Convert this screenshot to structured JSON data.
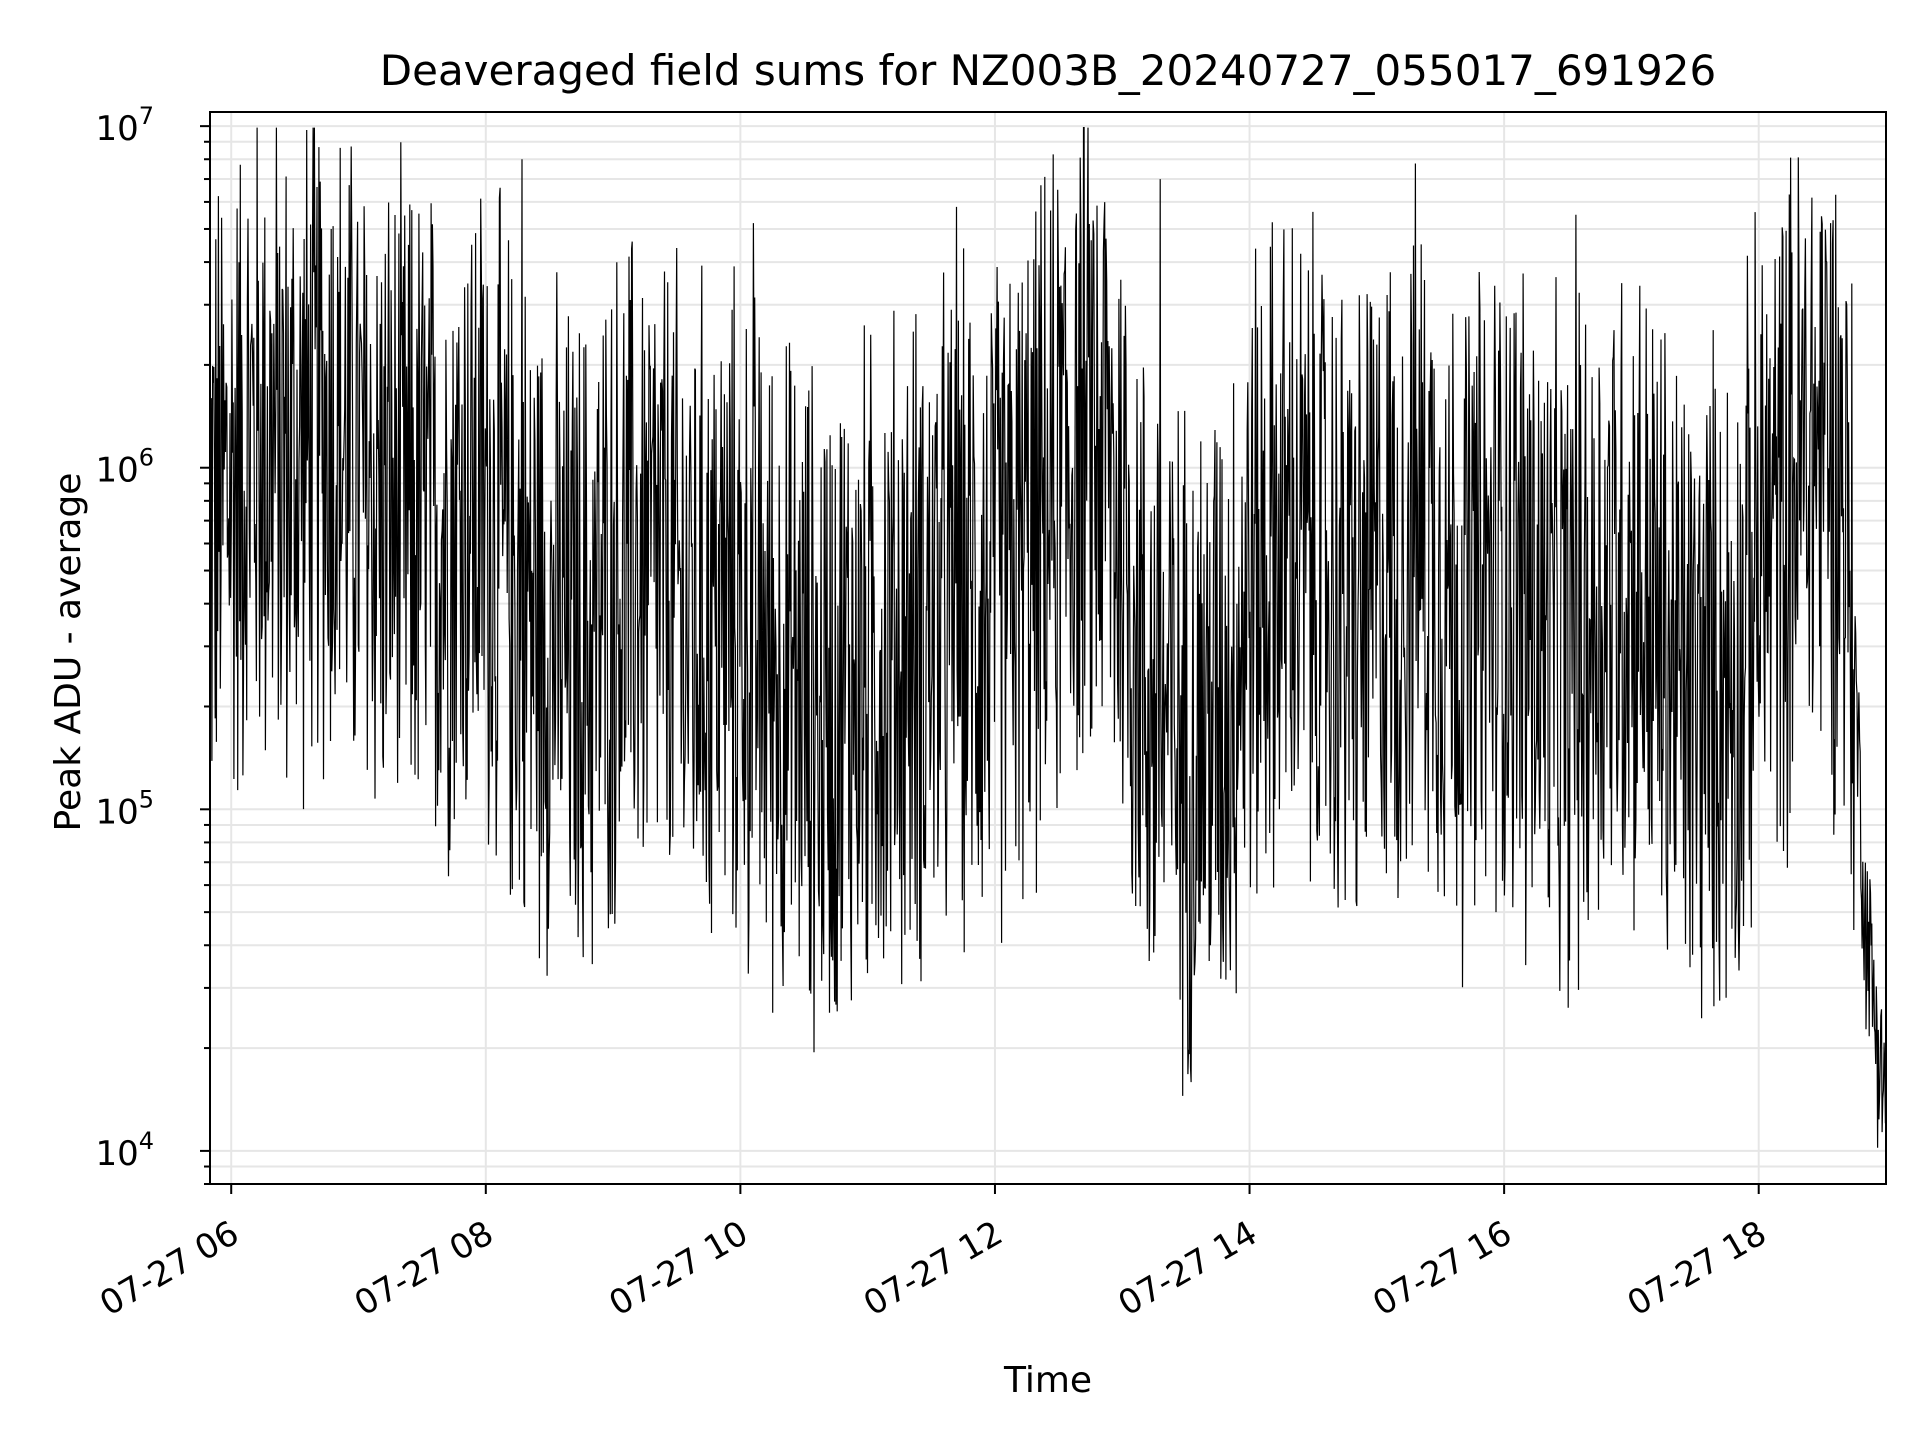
{
  "chart_data": {
    "type": "line",
    "title": "Deaveraged field sums for NZ003B_20240727_055017_691926",
    "xlabel": "Time",
    "ylabel": "Peak ADU - average",
    "yscale": "log",
    "ylim": [
      8000,
      11000000
    ],
    "xlim": [
      "2024-07-27 05:50",
      "2024-07-27 19:00"
    ],
    "x_tick_labels": [
      "07-27 06",
      "07-27 08",
      "07-27 10",
      "07-27 12",
      "07-27 14",
      "07-27 16",
      "07-27 18"
    ],
    "y_tick_labels": [
      {
        "base": "10",
        "exp": "4"
      },
      {
        "base": "10",
        "exp": "5"
      },
      {
        "base": "10",
        "exp": "6"
      },
      {
        "base": "10",
        "exp": "7"
      }
    ],
    "grid": true,
    "legend": "none",
    "line_color": "#000000",
    "grid_color": "#e6e6e6",
    "series": [
      {
        "x": [
          "2024-07-27 05:50",
          "2024-07-27 06:00",
          "2024-07-27 06:10",
          "2024-07-27 06:20",
          "2024-07-27 06:30",
          "2024-07-27 06:40",
          "2024-07-27 06:50",
          "2024-07-27 07:00",
          "2024-07-27 07:10",
          "2024-07-27 07:20",
          "2024-07-27 07:30",
          "2024-07-27 07:40",
          "2024-07-27 07:50",
          "2024-07-27 08:00",
          "2024-07-27 08:10",
          "2024-07-27 08:20",
          "2024-07-27 08:30",
          "2024-07-27 08:40",
          "2024-07-27 08:50",
          "2024-07-27 09:00",
          "2024-07-27 09:10",
          "2024-07-27 09:20",
          "2024-07-27 09:30",
          "2024-07-27 09:40",
          "2024-07-27 09:50",
          "2024-07-27 10:00",
          "2024-07-27 10:10",
          "2024-07-27 10:20",
          "2024-07-27 10:30",
          "2024-07-27 10:40",
          "2024-07-27 10:50",
          "2024-07-27 11:00",
          "2024-07-27 11:10",
          "2024-07-27 11:20",
          "2024-07-27 11:30",
          "2024-07-27 11:40",
          "2024-07-27 11:50",
          "2024-07-27 12:00",
          "2024-07-27 12:10",
          "2024-07-27 12:20",
          "2024-07-27 12:30",
          "2024-07-27 12:40",
          "2024-07-27 12:50",
          "2024-07-27 13:00",
          "2024-07-27 13:10",
          "2024-07-27 13:20",
          "2024-07-27 13:30",
          "2024-07-27 13:40",
          "2024-07-27 13:50",
          "2024-07-27 14:00",
          "2024-07-27 14:10",
          "2024-07-27 14:20",
          "2024-07-27 14:30",
          "2024-07-27 14:40",
          "2024-07-27 14:50",
          "2024-07-27 15:00",
          "2024-07-27 15:10",
          "2024-07-27 15:20",
          "2024-07-27 15:30",
          "2024-07-27 15:40",
          "2024-07-27 15:50",
          "2024-07-27 16:00",
          "2024-07-27 16:10",
          "2024-07-27 16:20",
          "2024-07-27 16:30",
          "2024-07-27 16:40",
          "2024-07-27 16:50",
          "2024-07-27 17:00",
          "2024-07-27 17:10",
          "2024-07-27 17:20",
          "2024-07-27 17:30",
          "2024-07-27 17:40",
          "2024-07-27 17:50",
          "2024-07-27 18:00",
          "2024-07-27 18:10",
          "2024-07-27 18:20",
          "2024-07-27 18:30",
          "2024-07-27 18:40",
          "2024-07-27 18:45",
          "2024-07-27 18:50",
          "2024-07-27 18:55",
          "2024-07-27 19:00"
        ],
        "y": [
          700000,
          900000,
          1200000,
          1100000,
          1000000,
          1300000,
          1200000,
          900000,
          800000,
          700000,
          700000,
          650000,
          800000,
          750000,
          500000,
          400000,
          350000,
          300000,
          300000,
          450000,
          500000,
          500000,
          400000,
          350000,
          380000,
          350000,
          300000,
          250000,
          220000,
          200000,
          230000,
          250000,
          280000,
          300000,
          350000,
          350000,
          400000,
          400000,
          500000,
          600000,
          900000,
          1200000,
          1100000,
          700000,
          250000,
          180000,
          160000,
          180000,
          220000,
          450000,
          550000,
          600000,
          500000,
          400000,
          350000,
          450000,
          550000,
          700000,
          500000,
          350000,
          400000,
          500000,
          450000,
          300000,
          250000,
          350000,
          450000,
          500000,
          350000,
          250000,
          200000,
          250000,
          250000,
          550000,
          700000,
          1000000,
          1200000,
          900000,
          300000,
          50000,
          25000,
          14000
        ]
      }
    ],
    "spikes": [
      {
        "x": "2024-07-27 08:17",
        "y": 8000000
      },
      {
        "x": "2024-07-27 10:06",
        "y": 5200000
      },
      {
        "x": "2024-07-27 11:42",
        "y": 5800000
      },
      {
        "x": "2024-07-27 13:18",
        "y": 7000000
      },
      {
        "x": "2024-07-27 16:34",
        "y": 5500000
      },
      {
        "x": "2024-07-27 06:47",
        "y": 5000000
      },
      {
        "x": "2024-07-27 12:51",
        "y": 4300000
      },
      {
        "x": "2024-07-27 18:32",
        "y": 4000000
      },
      {
        "x": "2024-07-27 16:10",
        "y": 35000
      },
      {
        "x": "2024-07-27 10:37",
        "y": 52000
      },
      {
        "x": "2024-07-27 15:10",
        "y": 55000
      }
    ]
  }
}
